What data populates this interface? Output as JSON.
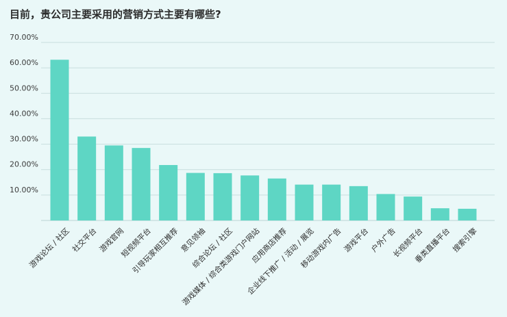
{
  "chart_data": {
    "type": "bar",
    "title": "目前，贵公司主要采用的营销方式主要有哪些?",
    "xlabel": "",
    "ylabel": "",
    "ylim": [
      0,
      70
    ],
    "yticks": [
      "70.00%",
      "60.00%",
      "50.00%",
      "40.00%",
      "30.00%",
      "20.00%",
      "10.00%"
    ],
    "ytick_values": [
      70,
      60,
      50,
      40,
      30,
      20,
      10
    ],
    "grid": true,
    "bar_color": "#5ed6c4",
    "categories": [
      "游戏论坛 / 社区",
      "社交平台",
      "游戏官网",
      "短视频平台",
      "引导玩家相互推荐",
      "意见领袖",
      "综合论坛 / 社区",
      "游戏媒体 / 综合类游戏门户网站",
      "应用商店推荐",
      "企业线下推广 / 活动 / 展览",
      "移动游戏内广告",
      "游戏平台",
      "户外广告",
      "长视频平台",
      "垂类直播平台",
      "搜索引擎"
    ],
    "values": [
      63.2,
      33.0,
      29.5,
      28.5,
      21.8,
      18.7,
      18.6,
      17.7,
      16.5,
      14.1,
      14.1,
      13.5,
      10.4,
      9.4,
      4.8,
      4.6
    ]
  }
}
